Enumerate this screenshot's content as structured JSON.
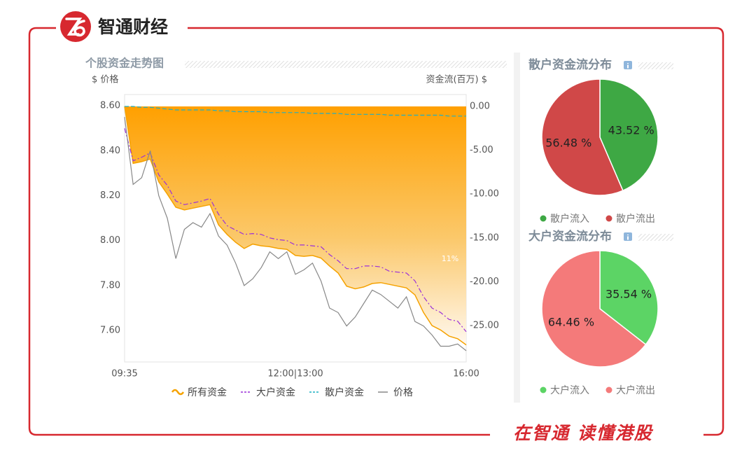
{
  "header": {
    "logo_text": "智通财经"
  },
  "footer": {
    "slogan": "在智通 读懂港股"
  },
  "chart_data": [
    {
      "type": "line",
      "title": "个股资金走势图",
      "ylabel": "$ 价格",
      "y2label": "资金流(百万) $",
      "annotation": "11%",
      "categories": [
        "09:35",
        null,
        null,
        null,
        null,
        null,
        null,
        null,
        null,
        null,
        null,
        null,
        null,
        null,
        null,
        null,
        null,
        null,
        null,
        null,
        "12:00|13:00",
        null,
        null,
        null,
        null,
        null,
        null,
        null,
        null,
        null,
        null,
        null,
        null,
        null,
        null,
        null,
        null,
        null,
        null,
        null,
        "16:00"
      ],
      "ylim": [
        7.46,
        8.65
      ],
      "yticks": [
        {
          "value": 7.6,
          "label": "7.60"
        },
        {
          "value": 7.8,
          "label": "7.80"
        },
        {
          "value": 8.0,
          "label": "8.00"
        },
        {
          "value": 8.2,
          "label": "8.20"
        },
        {
          "value": 8.4,
          "label": "8.40"
        },
        {
          "value": 8.6,
          "label": "8.60"
        }
      ],
      "y2lim": [
        -29.15,
        1.36
      ],
      "y2ticks": [
        {
          "value": -25,
          "label": "-25.00"
        },
        {
          "value": -20,
          "label": "-20.00"
        },
        {
          "value": -15,
          "label": "-15.00"
        },
        {
          "value": -10,
          "label": "-10.00"
        },
        {
          "value": -5,
          "label": "-5.00"
        },
        {
          "value": 0,
          "label": "0.00"
        }
      ],
      "series": [
        {
          "name": "所有资金",
          "color": "#f5a200",
          "axis": "y2",
          "area": true,
          "line_style": "solid",
          "values": [
            0,
            -6.5,
            -6.3,
            -6.0,
            -8.6,
            -10.0,
            -11.5,
            -11.8,
            -11.6,
            -11.4,
            -11.2,
            -13.5,
            -14.6,
            -15.5,
            -16.2,
            -15.7,
            -15.9,
            -16.0,
            -16.2,
            -16.3,
            -17.0,
            -17.1,
            -17.0,
            -17.3,
            -18.2,
            -19.0,
            -20.5,
            -20.8,
            -20.6,
            -20.2,
            -20.1,
            -20.3,
            -20.5,
            -20.7,
            -21.5,
            -23.5,
            -25.0,
            -25.5,
            -26.2,
            -26.5,
            -27.2
          ]
        },
        {
          "name": "大户资金",
          "color": "#9b30d9",
          "axis": "y2",
          "line_style": "dashdot",
          "values": [
            -2.5,
            -6.2,
            -5.8,
            -5.3,
            -7.8,
            -9.0,
            -10.8,
            -11.2,
            -11.0,
            -10.8,
            -10.5,
            -12.3,
            -13.6,
            -14.1,
            -14.6,
            -14.5,
            -14.6,
            -15.0,
            -15.2,
            -15.3,
            -15.8,
            -15.8,
            -15.9,
            -16.0,
            -16.9,
            -17.6,
            -18.5,
            -18.5,
            -18.2,
            -18.2,
            -18.3,
            -18.8,
            -18.9,
            -19.0,
            -19.9,
            -21.7,
            -23.0,
            -23.5,
            -24.3,
            -24.5,
            -25.7
          ]
        },
        {
          "name": "散户资金",
          "color": "#1fb0c4",
          "axis": "y2",
          "line_style": "dashed",
          "values": [
            0,
            0,
            -0.1,
            -0.1,
            -0.2,
            -0.3,
            -0.4,
            -0.4,
            -0.4,
            -0.4,
            -0.4,
            -0.5,
            -0.5,
            -0.6,
            -0.6,
            -0.6,
            -0.6,
            -0.7,
            -0.7,
            -0.7,
            -0.7,
            -0.7,
            -0.8,
            -0.8,
            -0.8,
            -0.8,
            -0.9,
            -0.9,
            -0.9,
            -0.9,
            -0.9,
            -1.0,
            -1.0,
            -1.0,
            -1.0,
            -1.0,
            -1.0,
            -1.0,
            -1.1,
            -1.1,
            -1.1
          ]
        },
        {
          "name": "价格",
          "color": "#888888",
          "axis": "y",
          "line_style": "solid",
          "values": [
            8.55,
            8.25,
            8.28,
            8.4,
            8.2,
            8.1,
            7.92,
            8.05,
            8.08,
            8.06,
            8.12,
            8.02,
            7.98,
            7.9,
            7.8,
            7.83,
            7.88,
            7.95,
            7.92,
            7.95,
            7.85,
            7.87,
            7.9,
            7.82,
            7.7,
            7.68,
            7.62,
            7.66,
            7.72,
            7.78,
            7.76,
            7.73,
            7.7,
            7.75,
            7.64,
            7.62,
            7.58,
            7.53,
            7.53,
            7.54,
            7.51
          ]
        }
      ]
    },
    {
      "type": "pie",
      "title": "散户资金流分布",
      "categories": [
        "散户流入",
        "散户流出"
      ],
      "values": [
        43.52,
        56.48
      ],
      "value_labels": [
        "43.52 %",
        "56.48 %"
      ],
      "colors": [
        "#3ea844",
        "#d04848"
      ]
    },
    {
      "type": "pie",
      "title": "大户资金流分布",
      "categories": [
        "大户流入",
        "大户流出"
      ],
      "values": [
        35.54,
        64.46
      ],
      "value_labels": [
        "35.54 %",
        "64.46 %"
      ],
      "colors": [
        "#5cd465",
        "#f47a7a"
      ]
    }
  ]
}
